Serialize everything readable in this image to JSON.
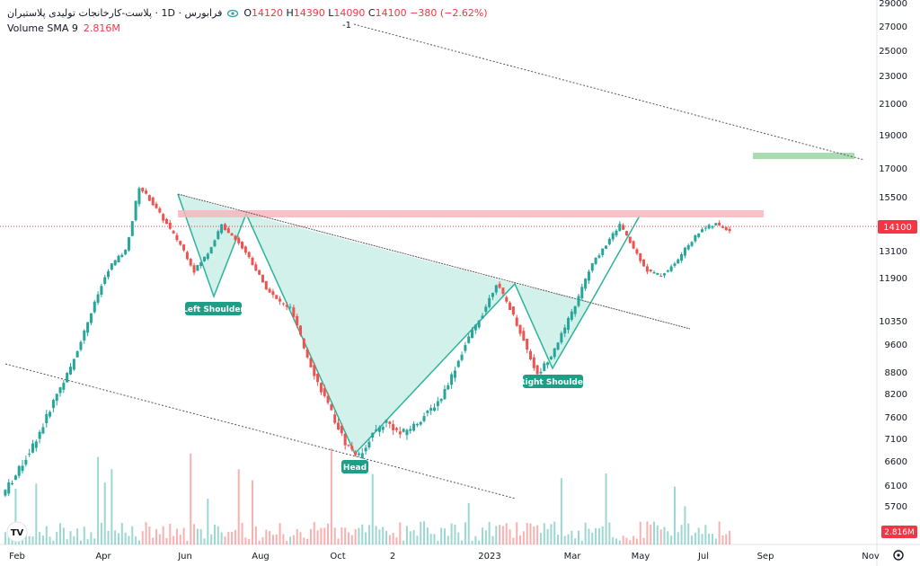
{
  "legend": {
    "symbol_title": "فرابورس · 1D · پلاست-کارخانجات تولیدی پلاستیران",
    "ohlc": {
      "o_label": "O",
      "o": "14120",
      "h_label": "H",
      "h": "14390",
      "l_label": "L",
      "l": "14090",
      "c_label": "C",
      "c": "14100",
      "change": "−380 (−2.62%)"
    },
    "volume_label": "Volume SMA 9",
    "volume_value": "2.816M"
  },
  "colors": {
    "up": "#26a69a",
    "down": "#ef5350",
    "pattern_fill": "#c9eee6",
    "pattern_line": "#2bb39b",
    "resistance": "#f7b6bd",
    "target": "#a9dcb3",
    "trend": "#555555",
    "label_bg": "#1e9e86",
    "price_tag": "#f23645",
    "volume_tag": "#f23645"
  },
  "chart_data": {
    "type": "candlestick",
    "y_ticks": [
      "29000",
      "27000",
      "25000",
      "23000",
      "21000",
      "19000",
      "17000",
      "15500",
      "14350",
      "13100",
      "11900",
      "10350",
      "9600",
      "8800",
      "8200",
      "7600",
      "7100",
      "6600",
      "6100",
      "5700"
    ],
    "x_ticks": [
      "Feb",
      "Apr",
      "Jun",
      "Aug",
      "Oct",
      "2",
      "2023",
      "Mar",
      "May",
      "Jul",
      "Sep",
      "Nov"
    ],
    "last_price": "14100",
    "volume_last": "2.816M",
    "pattern_labels": [
      "Left Shoulder",
      "Head",
      "Right Shoulder"
    ],
    "trendline_label": "-1",
    "price_path": [
      [
        "Feb",
        5900
      ],
      [
        "Feb",
        6300
      ],
      [
        "Feb",
        6800
      ],
      [
        "Mar",
        7400
      ],
      [
        "Mar",
        8200
      ],
      [
        "Mar",
        8900
      ],
      [
        "Apr",
        10000
      ],
      [
        "Apr",
        11300
      ],
      [
        "Apr",
        12500
      ],
      [
        "Apr",
        13100
      ],
      [
        "May",
        16000
      ],
      [
        "May",
        15200
      ],
      [
        "Jun",
        14400
      ],
      [
        "Jun",
        13400
      ],
      [
        "Jun",
        12200
      ],
      [
        "Jul",
        13000
      ],
      [
        "Jul",
        14350
      ],
      [
        "Jul",
        13700
      ],
      [
        "Aug",
        12800
      ],
      [
        "Aug",
        11700
      ],
      [
        "Aug",
        11100
      ],
      [
        "Sep",
        10800
      ],
      [
        "Sep",
        9500
      ],
      [
        "Sep",
        8500
      ],
      [
        "Oct",
        7700
      ],
      [
        "Oct",
        7000
      ],
      [
        "Oct",
        6700
      ],
      [
        "Oct",
        7200
      ],
      [
        "Nov",
        7500
      ],
      [
        "Nov",
        7200
      ],
      [
        "Nov",
        7400
      ],
      [
        "Dec",
        7700
      ],
      [
        "Dec",
        8100
      ],
      [
        "Dec",
        8900
      ],
      [
        "Jan",
        9800
      ],
      [
        "Jan",
        10600
      ],
      [
        "Jan",
        11700
      ],
      [
        "Feb",
        10800
      ],
      [
        "Feb",
        9700
      ],
      [
        "Feb",
        8700
      ],
      [
        "Mar",
        9300
      ],
      [
        "Mar",
        10100
      ],
      [
        "Mar",
        11200
      ],
      [
        "Apr",
        12500
      ],
      [
        "Apr",
        13400
      ],
      [
        "Apr",
        14400
      ],
      [
        "May",
        13200
      ],
      [
        "May",
        12200
      ],
      [
        "May",
        12000
      ],
      [
        "Jun",
        12500
      ],
      [
        "Jun",
        13400
      ],
      [
        "Jul",
        14200
      ],
      [
        "Jul",
        14400
      ],
      [
        "Jul",
        14100
      ]
    ]
  }
}
